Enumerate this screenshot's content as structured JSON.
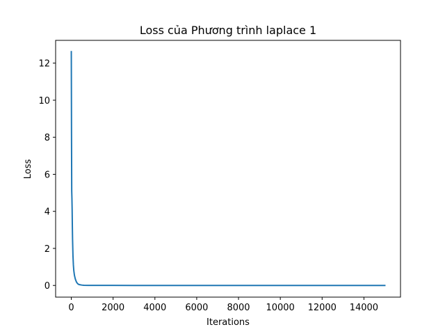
{
  "chart_data": {
    "type": "line",
    "title": "Loss của Phương trình laplace 1",
    "xlabel": "Iterations",
    "ylabel": "Loss",
    "xlim": [
      -750,
      15750
    ],
    "ylim": [
      -0.63,
      13.23
    ],
    "xticks": [
      0,
      2000,
      4000,
      6000,
      8000,
      10000,
      12000,
      14000
    ],
    "yticks": [
      0,
      2,
      4,
      6,
      8,
      10,
      12
    ],
    "grid": false,
    "series": [
      {
        "color": "#1f77b4",
        "x": [
          0,
          10,
          20,
          30,
          40,
          50,
          60,
          80,
          100,
          120,
          150,
          180,
          200,
          250,
          300,
          350,
          400,
          500,
          600,
          800,
          1000,
          2000,
          3000,
          4000,
          5000,
          6000,
          7000,
          8000,
          9000,
          10000,
          11000,
          12000,
          13000,
          14000,
          15000
        ],
        "y": [
          12.62,
          8.2,
          5.1,
          4.7,
          4.1,
          3.2,
          2.5,
          1.6,
          1.1,
          0.8,
          0.55,
          0.4,
          0.32,
          0.18,
          0.1,
          0.06,
          0.04,
          0.02,
          0.01,
          0.005,
          0.003,
          0.002,
          0.001,
          0.001,
          0.001,
          0.001,
          0.001,
          0.001,
          0.001,
          0.001,
          0.001,
          0.001,
          0.001,
          0.001,
          0.001
        ]
      }
    ]
  }
}
